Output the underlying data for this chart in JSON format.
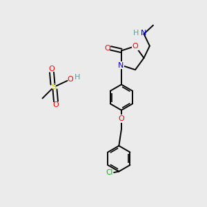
{
  "bg_color": "#ebebeb",
  "N_color": "#0000dd",
  "O_color": "#ff0000",
  "S_color": "#cccc00",
  "Cl_color": "#00bb00",
  "H_color": "#669999",
  "line_width": 1.4,
  "fig_w": 3.0,
  "fig_h": 3.0,
  "dpi": 100,
  "xlim": [
    0,
    10
  ],
  "ylim": [
    0,
    10
  ]
}
